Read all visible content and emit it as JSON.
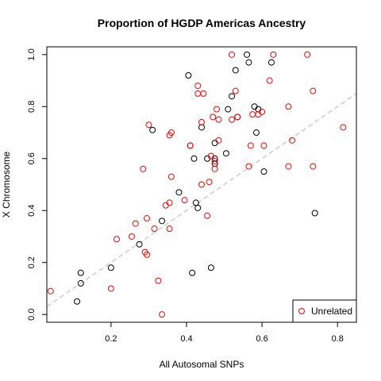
{
  "chart_data": {
    "type": "scatter",
    "title": "Proportion of HGDP Americas Ancestry",
    "xlabel": "All Autosomal SNPs",
    "ylabel": "X Chromosome",
    "xlim": [
      0.03,
      0.85
    ],
    "ylim": [
      -0.03,
      1.03
    ],
    "x_ticks": [
      0.2,
      0.4,
      0.6,
      0.8
    ],
    "y_ticks": [
      0.0,
      0.2,
      0.4,
      0.6,
      0.8,
      1.0
    ],
    "x_tick_labels": [
      "0.2",
      "0.4",
      "0.6",
      "0.8"
    ],
    "y_tick_labels": [
      "0.0",
      "0.2",
      "0.4",
      "0.6",
      "0.8",
      "1.0"
    ],
    "grid": false,
    "reference_line": {
      "style": "dashed",
      "color": "#cccccc",
      "slope": 1,
      "intercept": 0
    },
    "legend": {
      "position": "bottom-right",
      "entries": [
        {
          "label": "Unrelated",
          "color": "#ff0000"
        }
      ]
    },
    "series": [
      {
        "color": "#000000",
        "points": [
          [
            0.11,
            0.05
          ],
          [
            0.12,
            0.12
          ],
          [
            0.12,
            0.16
          ],
          [
            0.2,
            0.18
          ],
          [
            0.275,
            0.27
          ],
          [
            0.31,
            0.71
          ],
          [
            0.335,
            0.36
          ],
          [
            0.38,
            0.47
          ],
          [
            0.405,
            0.92
          ],
          [
            0.41,
            0.65
          ],
          [
            0.415,
            0.16
          ],
          [
            0.42,
            0.6
          ],
          [
            0.425,
            0.43
          ],
          [
            0.43,
            0.41
          ],
          [
            0.44,
            0.72
          ],
          [
            0.455,
            0.6
          ],
          [
            0.465,
            0.18
          ],
          [
            0.475,
            0.58
          ],
          [
            0.475,
            0.6
          ],
          [
            0.475,
            0.66
          ],
          [
            0.505,
            0.62
          ],
          [
            0.51,
            0.79
          ],
          [
            0.52,
            0.84
          ],
          [
            0.53,
            0.94
          ],
          [
            0.535,
            0.76
          ],
          [
            0.56,
            1.0
          ],
          [
            0.565,
            0.97
          ],
          [
            0.58,
            0.8
          ],
          [
            0.585,
            0.7
          ],
          [
            0.59,
            0.79
          ],
          [
            0.605,
            0.55
          ],
          [
            0.625,
            0.97
          ],
          [
            0.74,
            0.39
          ]
        ]
      },
      {
        "name": "Unrelated",
        "color": "#ff0000",
        "points": [
          [
            0.04,
            0.09
          ],
          [
            0.2,
            0.1
          ],
          [
            0.215,
            0.29
          ],
          [
            0.255,
            0.3
          ],
          [
            0.265,
            0.35
          ],
          [
            0.285,
            0.56
          ],
          [
            0.29,
            0.24
          ],
          [
            0.295,
            0.37
          ],
          [
            0.295,
            0.23
          ],
          [
            0.3,
            0.73
          ],
          [
            0.315,
            0.33
          ],
          [
            0.325,
            0.13
          ],
          [
            0.335,
            0.0
          ],
          [
            0.345,
            0.42
          ],
          [
            0.355,
            0.43
          ],
          [
            0.355,
            0.33
          ],
          [
            0.355,
            0.69
          ],
          [
            0.36,
            0.7
          ],
          [
            0.36,
            0.53
          ],
          [
            0.395,
            0.44
          ],
          [
            0.41,
            0.65
          ],
          [
            0.43,
            0.85
          ],
          [
            0.43,
            0.88
          ],
          [
            0.44,
            0.5
          ],
          [
            0.44,
            0.74
          ],
          [
            0.445,
            0.85
          ],
          [
            0.455,
            0.38
          ],
          [
            0.46,
            0.51
          ],
          [
            0.465,
            0.61
          ],
          [
            0.47,
            0.76
          ],
          [
            0.475,
            0.56
          ],
          [
            0.475,
            0.59
          ],
          [
            0.48,
            0.79
          ],
          [
            0.485,
            0.67
          ],
          [
            0.485,
            0.75
          ],
          [
            0.52,
            0.75
          ],
          [
            0.52,
            1.0
          ],
          [
            0.53,
            0.86
          ],
          [
            0.535,
            0.76
          ],
          [
            0.565,
            0.57
          ],
          [
            0.57,
            0.65
          ],
          [
            0.575,
            0.77
          ],
          [
            0.59,
            0.77
          ],
          [
            0.6,
            0.78
          ],
          [
            0.605,
            0.65
          ],
          [
            0.62,
            0.9
          ],
          [
            0.63,
            1.0
          ],
          [
            0.67,
            0.8
          ],
          [
            0.67,
            0.57
          ],
          [
            0.68,
            0.67
          ],
          [
            0.72,
            1.0
          ],
          [
            0.735,
            0.57
          ],
          [
            0.735,
            0.86
          ],
          [
            0.815,
            0.72
          ]
        ]
      }
    ]
  }
}
